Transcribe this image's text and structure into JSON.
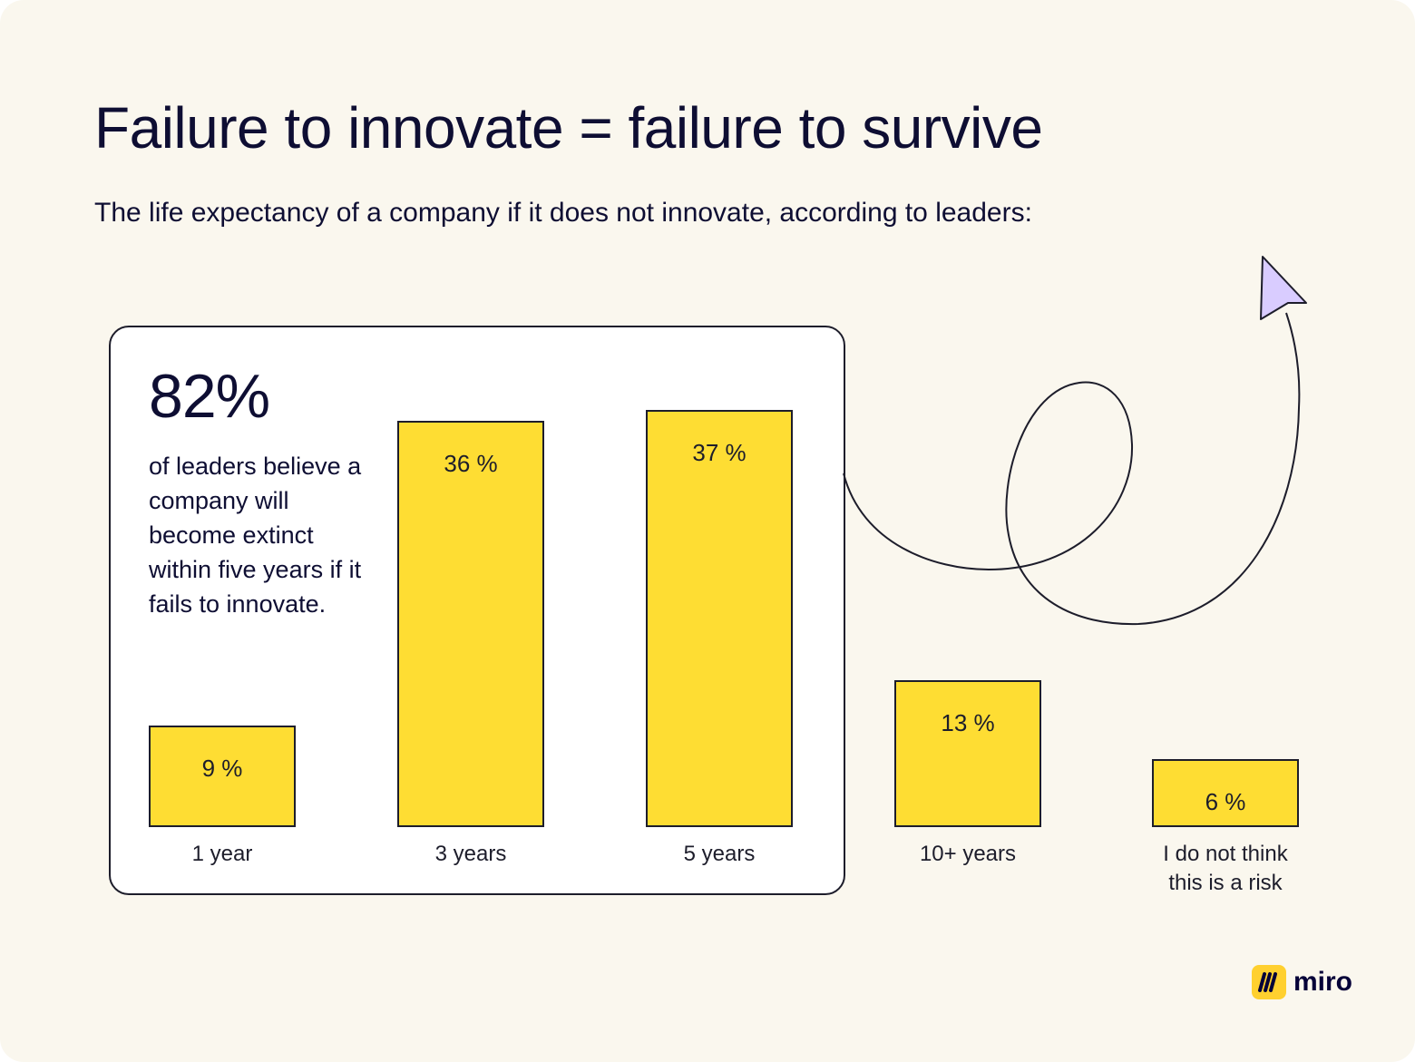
{
  "header": {
    "title": "Failure to innovate = failure to survive",
    "subtitle": "The life expectancy of a company if it does not innovate, according to leaders:"
  },
  "callout": {
    "stat": "82%",
    "text": "of leaders believe a company will become extinct within five years if it fails to innovate."
  },
  "colors": {
    "background": "#faf7ee",
    "bar_fill": "#fedd33",
    "arrow_fill": "#d9ccff",
    "outline": "#1d1d2b"
  },
  "chart_data": {
    "type": "bar",
    "title": "Failure to innovate = failure to survive",
    "subtitle": "The life expectancy of a company if it does not innovate, according to leaders:",
    "categories": [
      "1 year",
      "3 years",
      "5 years",
      "10+ years",
      "I do not think this is a risk"
    ],
    "values": [
      9,
      36,
      37,
      13,
      6
    ],
    "value_labels": [
      "9 %",
      "36 %",
      "37 %",
      "13 %",
      "6 %"
    ],
    "unit": "%",
    "grid": false,
    "legend": "none",
    "highlighted_categories": [
      "1 year",
      "3 years",
      "5 years"
    ]
  },
  "logo": {
    "text": "miro",
    "icon": "miro-logo-icon"
  }
}
